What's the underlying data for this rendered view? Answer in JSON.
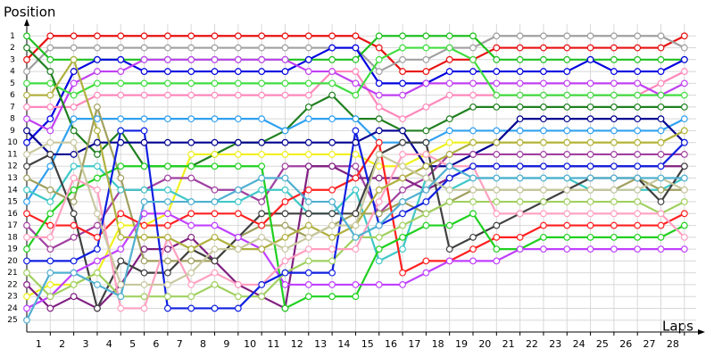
{
  "chart_data": {
    "type": "line",
    "y_title": "Position",
    "x_title": "Laps",
    "x": [
      0,
      1,
      2,
      3,
      4,
      5,
      6,
      7,
      8,
      9,
      10,
      11,
      12,
      13,
      14,
      15,
      16,
      17,
      18,
      19,
      20,
      21,
      22,
      23,
      24,
      25,
      26,
      27,
      28
    ],
    "xlim": [
      0,
      28.5
    ],
    "ylim": [
      0,
      26
    ],
    "y_inverted": true,
    "xticks": [
      1,
      2,
      3,
      4,
      5,
      6,
      7,
      8,
      9,
      10,
      11,
      12,
      13,
      14,
      15,
      16,
      17,
      18,
      19,
      20,
      21,
      22,
      23,
      24,
      25,
      26,
      27,
      28
    ],
    "yticks": [
      1,
      2,
      3,
      4,
      5,
      6,
      7,
      8,
      9,
      10,
      11,
      12,
      13,
      14,
      15,
      16,
      17,
      18,
      19,
      20,
      21,
      22,
      23,
      24,
      25
    ],
    "grid": true,
    "series": [
      {
        "color": "#e81010",
        "values": [
          3,
          1,
          1,
          1,
          1,
          1,
          1,
          1,
          1,
          1,
          1,
          1,
          1,
          1,
          1,
          2,
          4,
          4,
          3,
          3,
          2,
          2,
          2,
          2,
          2,
          2,
          2,
          2,
          1
        ]
      },
      {
        "color": "#a0a0a0",
        "values": [
          4,
          2,
          2,
          2,
          2,
          2,
          2,
          2,
          2,
          2,
          2,
          2,
          2,
          2,
          2,
          4,
          3,
          3,
          2,
          2,
          1,
          1,
          1,
          1,
          1,
          1,
          1,
          1,
          2
        ]
      },
      {
        "color": "#20c020",
        "values": [
          1,
          3,
          3,
          3,
          3,
          3,
          3,
          3,
          3,
          3,
          3,
          3,
          3,
          3,
          3,
          1,
          1,
          1,
          1,
          1,
          3,
          3,
          3,
          3,
          3,
          3,
          3,
          3,
          3
        ]
      },
      {
        "color": "#0000e0",
        "values": [
          10,
          8,
          4,
          3,
          3,
          4,
          4,
          4,
          4,
          4,
          4,
          4,
          3,
          2,
          2,
          5,
          5,
          5,
          4,
          4,
          4,
          4,
          4,
          4,
          3,
          4,
          4,
          4,
          3
        ]
      },
      {
        "color": "#ff88bb",
        "values": [
          7,
          7,
          7,
          6,
          6,
          6,
          6,
          6,
          6,
          6,
          6,
          6,
          6,
          4,
          4,
          7,
          8,
          7,
          6,
          6,
          6,
          6,
          6,
          6,
          6,
          6,
          6,
          5,
          4
        ]
      },
      {
        "color": "#c040f0",
        "values": [
          8,
          9,
          5,
          4,
          4,
          3,
          3,
          3,
          3,
          3,
          3,
          3,
          4,
          4,
          5,
          6,
          6,
          5,
          5,
          5,
          5,
          5,
          5,
          5,
          5,
          5,
          5,
          6,
          5
        ]
      },
      {
        "color": "#40dd40",
        "values": [
          5,
          5,
          6,
          5,
          5,
          5,
          5,
          5,
          5,
          5,
          5,
          5,
          5,
          5,
          6,
          3,
          2,
          2,
          2,
          3,
          6,
          6,
          6,
          6,
          6,
          6,
          6,
          6,
          6
        ]
      },
      {
        "color": "#208020",
        "values": [
          2,
          4,
          9,
          11,
          9,
          12,
          12,
          12,
          11,
          10,
          10,
          9,
          7,
          6,
          8,
          8,
          9,
          9,
          8,
          7,
          7,
          7,
          7,
          7,
          7,
          7,
          7,
          7,
          7
        ]
      },
      {
        "color": "#30a0f0",
        "values": [
          15,
          12,
          8,
          8,
          8,
          8,
          8,
          8,
          8,
          8,
          8,
          9,
          8,
          8,
          8,
          10,
          10,
          10,
          9,
          9,
          9,
          9,
          9,
          9,
          9,
          9,
          9,
          9,
          8
        ]
      },
      {
        "color": "#f0f020",
        "values": [
          23,
          22,
          22,
          21,
          17,
          17,
          16,
          11,
          11,
          11,
          11,
          11,
          11,
          11,
          11,
          12,
          12,
          11,
          10,
          10,
          10,
          10,
          10,
          10,
          10,
          10,
          10,
          10,
          9
        ]
      },
      {
        "color": "#000090",
        "values": [
          9,
          11,
          11,
          10,
          10,
          10,
          10,
          10,
          10,
          10,
          10,
          10,
          10,
          10,
          10,
          9,
          9,
          12,
          12,
          11,
          10,
          8,
          8,
          8,
          8,
          8,
          8,
          8,
          10
        ]
      },
      {
        "color": "#a040a0",
        "values": [
          17,
          19,
          18,
          17,
          14,
          14,
          13,
          13,
          14,
          14,
          15,
          12,
          12,
          12,
          12,
          16,
          14,
          13,
          11,
          11,
          11,
          11,
          11,
          11,
          11,
          11,
          11,
          11,
          11
        ]
      },
      {
        "color": "#802080",
        "values": [
          22,
          24,
          23,
          24,
          22,
          19,
          19,
          18,
          20,
          22,
          23,
          24,
          12,
          12,
          13,
          13,
          13,
          14,
          13,
          12,
          12,
          12,
          12,
          12,
          12,
          12,
          12,
          12,
          12
        ]
      },
      {
        "color": "#40c8c8",
        "values": [
          14,
          15,
          12,
          12,
          14,
          14,
          14,
          15,
          15,
          15,
          14,
          14,
          16,
          16,
          14,
          20,
          19,
          13,
          14,
          13,
          13,
          13,
          13,
          13,
          14,
          14,
          14,
          14,
          13
        ]
      },
      {
        "color": "#a0a060",
        "values": [
          13,
          14,
          15,
          7,
          13,
          20,
          20,
          20,
          20,
          18,
          17,
          17,
          18,
          17,
          16,
          16,
          15,
          16,
          15,
          14,
          14,
          14,
          14,
          14,
          14,
          14,
          13,
          14,
          14
        ]
      },
      {
        "color": "#404040",
        "values": [
          12,
          11,
          16,
          24,
          20,
          21,
          21,
          19,
          20,
          18,
          16,
          16,
          16,
          16,
          16,
          11,
          10,
          10,
          19,
          18,
          17,
          16,
          15,
          14,
          13,
          13,
          13,
          15,
          12
        ]
      },
      {
        "color": "#ff2020",
        "values": [
          16,
          17,
          17,
          18,
          16,
          17,
          17,
          16,
          16,
          16,
          17,
          15,
          14,
          14,
          13,
          10,
          21,
          20,
          20,
          19,
          18,
          18,
          17,
          17,
          17,
          17,
          17,
          17,
          16
        ]
      },
      {
        "color": "#20d020",
        "values": [
          19,
          16,
          14,
          13,
          12,
          12,
          12,
          12,
          12,
          12,
          12,
          24,
          23,
          23,
          23,
          19,
          18,
          17,
          17,
          16,
          19,
          19,
          18,
          18,
          18,
          18,
          18,
          18,
          17
        ]
      },
      {
        "color": "#c040ff",
        "values": [
          24,
          23,
          21,
          20,
          19,
          16,
          16,
          17,
          17,
          18,
          19,
          22,
          22,
          22,
          22,
          22,
          22,
          21,
          20,
          20,
          20,
          19,
          19,
          19,
          19,
          19,
          19,
          19,
          19
        ]
      },
      {
        "color": "#a0d060",
        "values": [
          21,
          23,
          22,
          21,
          23,
          23,
          23,
          23,
          22,
          23,
          23,
          21,
          20,
          20,
          18,
          18,
          17,
          16,
          15,
          15,
          15,
          15,
          15,
          15,
          15,
          15,
          15,
          16,
          15
        ]
      },
      {
        "color": "#ffa0c0",
        "values": [
          18,
          18,
          13,
          14,
          24,
          24,
          18,
          22,
          21,
          22,
          22,
          20,
          19,
          19,
          19,
          15,
          11,
          11,
          12,
          12,
          16,
          16,
          16,
          16,
          16,
          16,
          16,
          16,
          18
        ]
      },
      {
        "color": "#1020e0",
        "values": [
          20,
          20,
          20,
          19,
          9,
          9,
          24,
          24,
          24,
          24,
          22,
          21,
          21,
          21,
          9,
          17,
          16,
          15,
          13,
          12,
          12,
          12,
          12,
          12,
          12,
          12,
          12,
          12,
          10
        ]
      },
      {
        "color": "#b0b040",
        "values": [
          6,
          6,
          3,
          9,
          18,
          18,
          18,
          19,
          18,
          19,
          19,
          18,
          17,
          18,
          17,
          14,
          13,
          12,
          11,
          10,
          10,
          10,
          10,
          10,
          10,
          10,
          10,
          10,
          9
        ]
      },
      {
        "color": "#c8c8a0",
        "values": [
          11,
          10,
          10,
          16,
          22,
          22,
          22,
          21,
          19,
          19,
          18,
          19,
          18,
          17,
          17,
          11,
          12,
          13,
          14,
          14,
          14,
          14,
          14,
          14,
          14,
          14,
          14,
          13,
          14
        ]
      },
      {
        "color": "#50b0d0",
        "values": [
          25,
          21,
          21,
          22,
          23,
          15,
          15,
          15,
          15,
          14,
          13,
          13,
          15,
          15,
          18,
          17,
          15,
          14,
          12,
          13,
          13,
          13,
          13,
          13,
          13,
          13,
          13,
          13,
          13
        ]
      }
    ]
  }
}
